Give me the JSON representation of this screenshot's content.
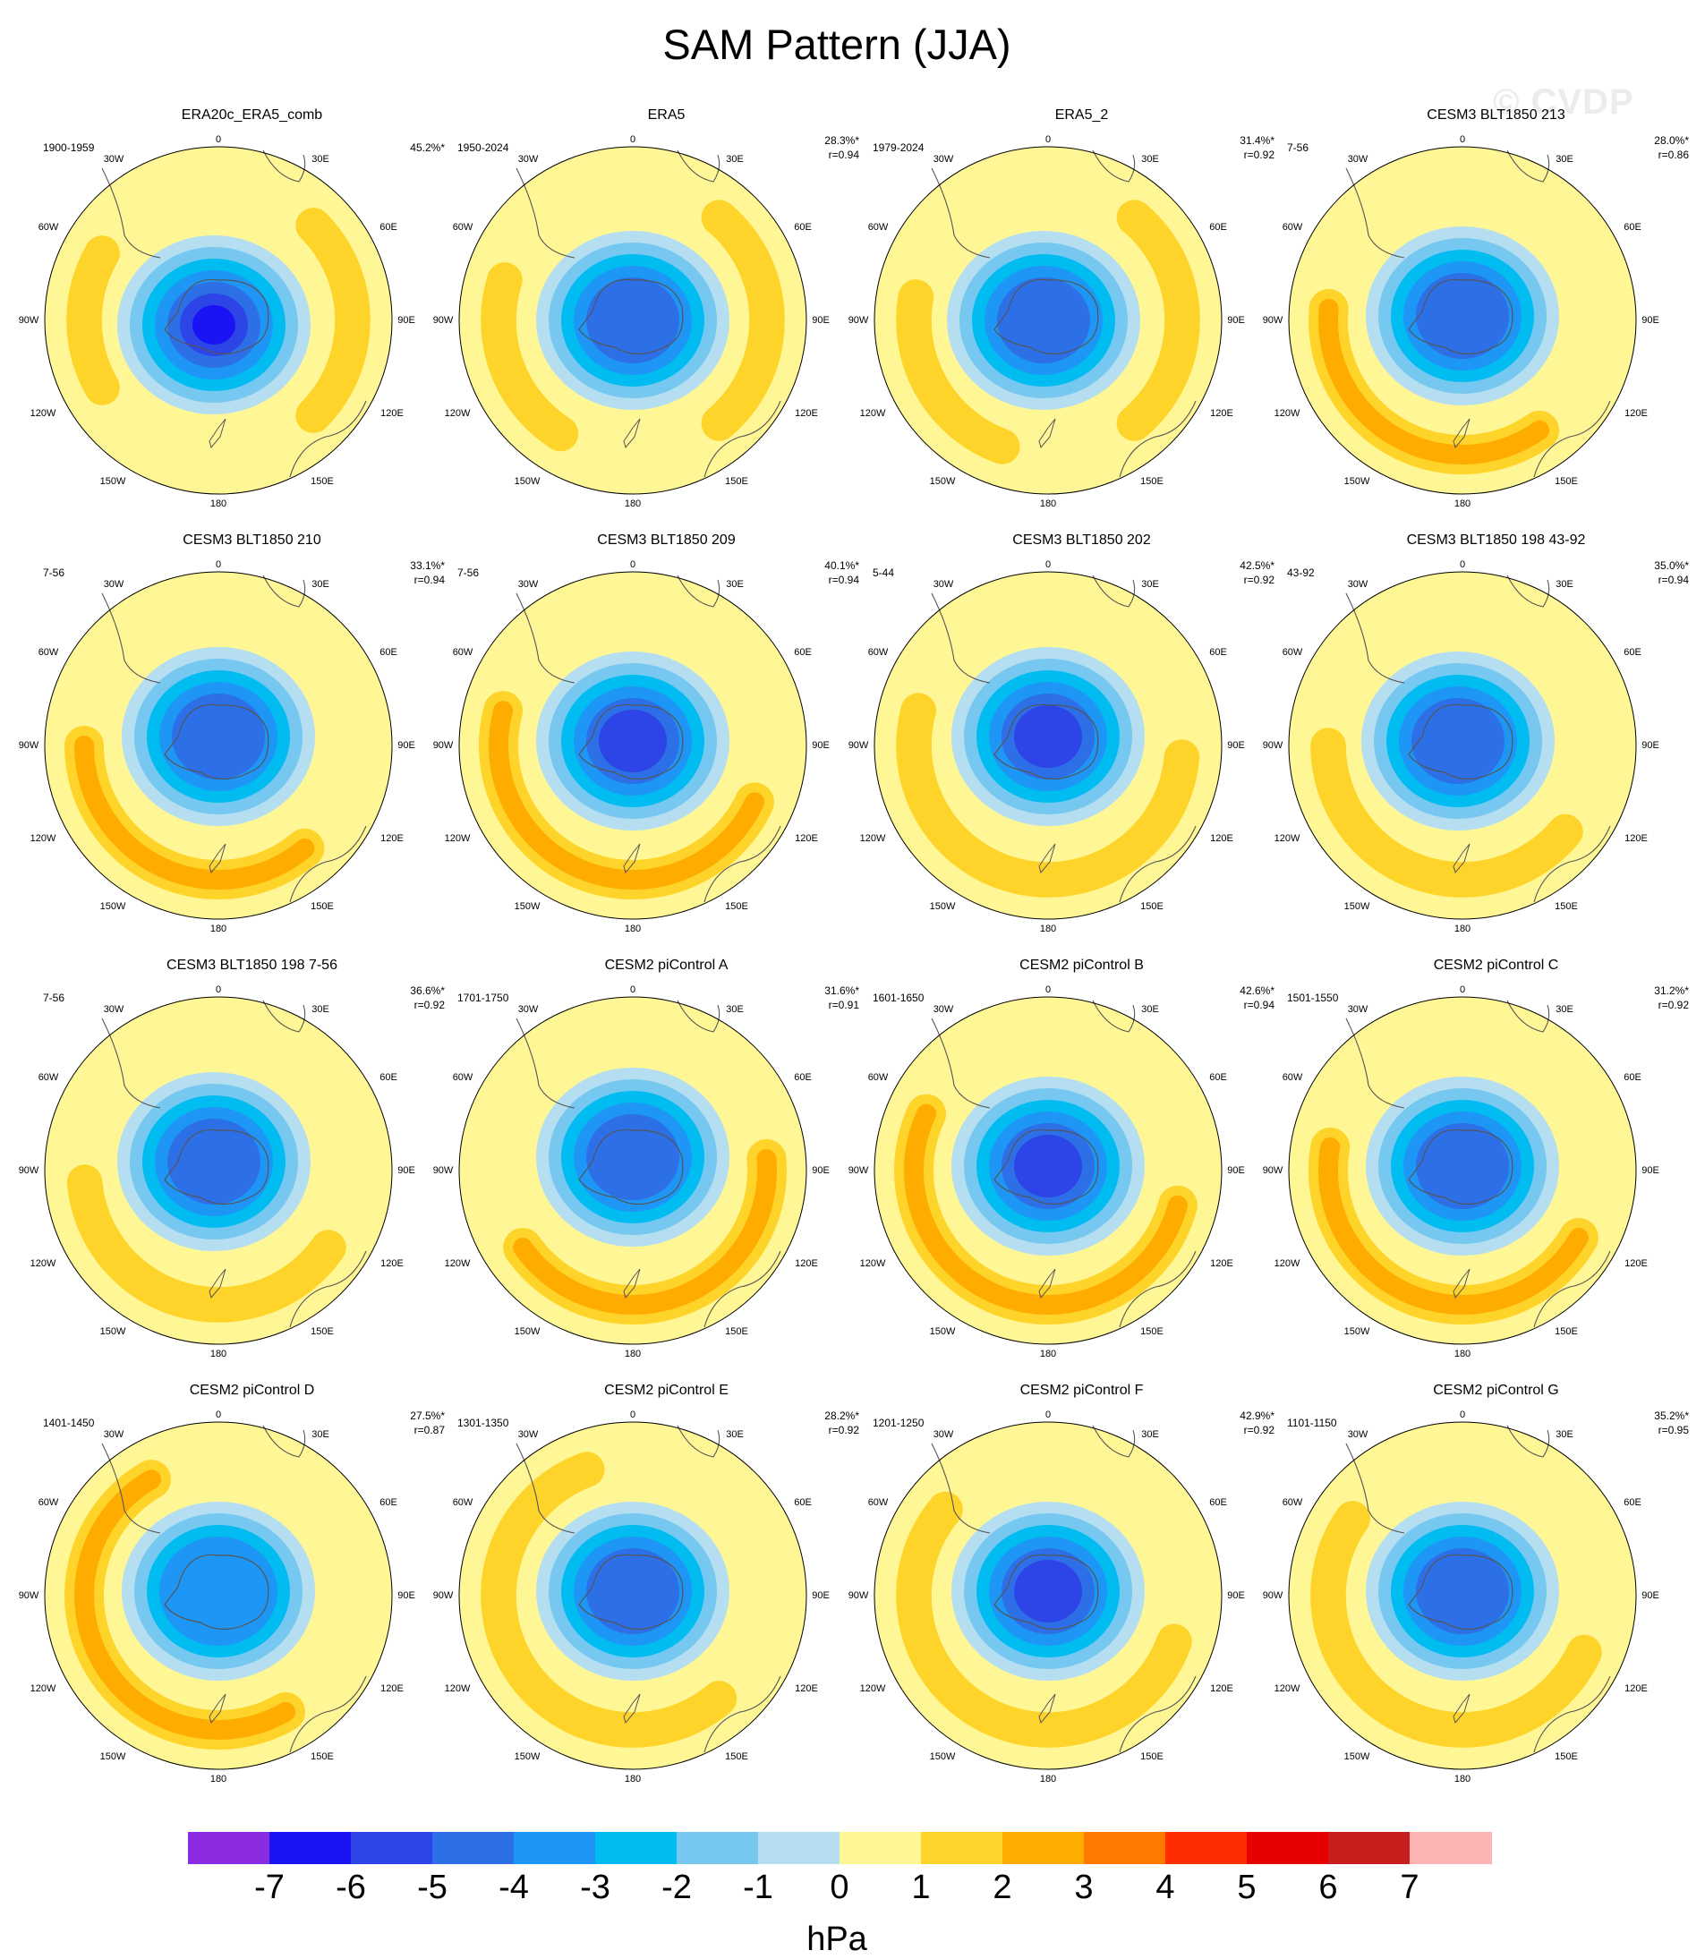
{
  "title": "SAM Pattern (JJA)",
  "watermark": "© CVDP",
  "lon_labels": {
    "top": "0",
    "bottom": "180",
    "30W": "30W",
    "30E": "30E",
    "60W": "60W",
    "60E": "60E",
    "90W": "90W",
    "90E": "90E",
    "120W": "120W",
    "120E": "120E",
    "150W": "150W",
    "150E": "150E"
  },
  "panels": [
    {
      "title": "ERA20c_ERA5_comb",
      "period": "1900-1959",
      "pct": "45.2%*",
      "r": ""
    },
    {
      "title": "ERA5",
      "period": "1950-2024",
      "pct": "28.3%*",
      "r": "r=0.94"
    },
    {
      "title": "ERA5_2",
      "period": "1979-2024",
      "pct": "31.4%*",
      "r": "r=0.92"
    },
    {
      "title": "CESM3 BLT1850 213",
      "period": "7-56",
      "pct": "28.0%*",
      "r": "r=0.86"
    },
    {
      "title": "CESM3 BLT1850 210",
      "period": "7-56",
      "pct": "33.1%*",
      "r": "r=0.94"
    },
    {
      "title": "CESM3 BLT1850 209",
      "period": "7-56",
      "pct": "40.1%*",
      "r": "r=0.94"
    },
    {
      "title": "CESM3 BLT1850 202",
      "period": "5-44",
      "pct": "42.5%*",
      "r": "r=0.92"
    },
    {
      "title": "CESM3 BLT1850 198 43-92",
      "period": "43-92",
      "pct": "35.0%*",
      "r": "r=0.94"
    },
    {
      "title": "CESM3 BLT1850 198 7-56",
      "period": "7-56",
      "pct": "36.6%*",
      "r": "r=0.92"
    },
    {
      "title": "CESM2 piControl A",
      "period": "1701-1750",
      "pct": "31.6%*",
      "r": "r=0.91"
    },
    {
      "title": "CESM2 piControl B",
      "period": "1601-1650",
      "pct": "42.6%*",
      "r": "r=0.94"
    },
    {
      "title": "CESM2 piControl C",
      "period": "1501-1550",
      "pct": "31.2%*",
      "r": "r=0.92"
    },
    {
      "title": "CESM2 piControl D",
      "period": "1401-1450",
      "pct": "27.5%*",
      "r": "r=0.87"
    },
    {
      "title": "CESM2 piControl E",
      "period": "1301-1350",
      "pct": "28.2%*",
      "r": "r=0.92"
    },
    {
      "title": "CESM2 piControl F",
      "period": "1201-1250",
      "pct": "42.9%*",
      "r": "r=0.92"
    },
    {
      "title": "CESM2 piControl G",
      "period": "1101-1150",
      "pct": "35.2%*",
      "r": "r=0.95"
    }
  ],
  "colorbar": {
    "unit": "hPa",
    "tick_labels": [
      "-7",
      "-6",
      "-5",
      "-4",
      "-3",
      "-2",
      "-1",
      "0",
      "1",
      "2",
      "3",
      "4",
      "5",
      "6",
      "7"
    ],
    "colors": [
      "#8a2be2",
      "#1a14f5",
      "#2d45e6",
      "#2c6fe6",
      "#1e96f5",
      "#00bcf0",
      "#76c8f0",
      "#b5dff0",
      "#fff796",
      "#ffd42a",
      "#ffac00",
      "#ff7800",
      "#ff2d00",
      "#e60000",
      "#c81e1e",
      "#ffb4b4"
    ]
  },
  "chart_data": {
    "type": "map",
    "description_note": "",
    "panels_peak_hPa": [
      {
        "name": "ERA20c_ERA5_comb",
        "min": -6.5,
        "max": 1.5
      },
      {
        "name": "ERA5",
        "min": -4.5,
        "max": 1.5
      },
      {
        "name": "ERA5_2",
        "min": -5.0,
        "max": 2.2
      },
      {
        "name": "CESM3 BLT1850 213",
        "min": -4.2,
        "max": 2.5
      },
      {
        "name": "CESM3 BLT1850 210",
        "min": -4.0,
        "max": 2.5
      },
      {
        "name": "CESM3 BLT1850 209",
        "min": -5.0,
        "max": 2.3
      },
      {
        "name": "CESM3 BLT1850 202",
        "min": -5.5,
        "max": 2.2
      },
      {
        "name": "CESM3 BLT1850 198 43-92",
        "min": -4.5,
        "max": 2.2
      },
      {
        "name": "CESM3 BLT1850 198 7-56",
        "min": -4.5,
        "max": 1.8
      },
      {
        "name": "CESM2 piControl A",
        "min": -4.5,
        "max": 2.5
      },
      {
        "name": "CESM2 piControl B",
        "min": -5.0,
        "max": 2.5
      },
      {
        "name": "CESM2 piControl C",
        "min": -4.5,
        "max": 2.3
      },
      {
        "name": "CESM2 piControl D",
        "min": -3.5,
        "max": 2.2
      },
      {
        "name": "CESM2 piControl E",
        "min": -4.0,
        "max": 1.8
      },
      {
        "name": "CESM2 piControl F",
        "min": -5.0,
        "max": 2.3
      },
      {
        "name": "CESM2 piControl G",
        "min": -4.2,
        "max": 2.4
      }
    ]
  }
}
